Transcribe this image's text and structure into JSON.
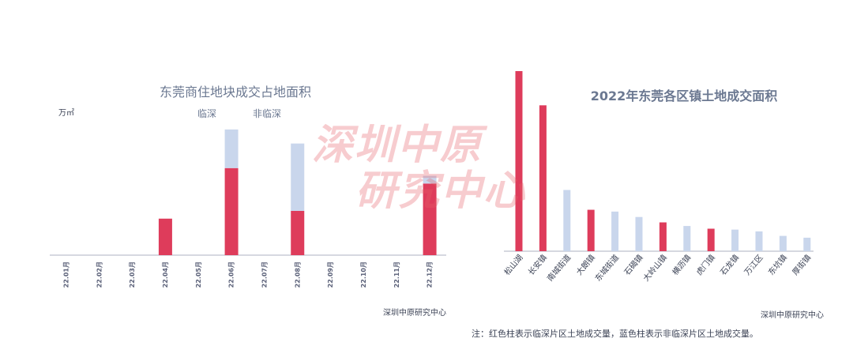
{
  "chart_data": [
    {
      "type": "bar",
      "stacked": true,
      "title": "东莞商住地块成交占地面积",
      "unit_label": "万㎡",
      "categories": [
        "22.01月",
        "22.02月",
        "22.03月",
        "22.04月",
        "22.05月",
        "22.06月",
        "22.07月",
        "22.08月",
        "22.09月",
        "22.10月",
        "22.11月",
        "22.12月"
      ],
      "series": [
        {
          "name": "临深",
          "color": "#de3c5b",
          "values": [
            0,
            0,
            0,
            5.2,
            0,
            12.4,
            0,
            6.3,
            0,
            0,
            0,
            10.2
          ]
        },
        {
          "name": "非临深",
          "color": "#c9d6ec",
          "values": [
            0,
            0,
            0,
            0,
            0,
            5.5,
            0,
            9.6,
            0,
            0,
            0,
            1.1
          ]
        }
      ],
      "ylim": [
        0,
        18
      ],
      "grid": false,
      "legend": "top",
      "source": "深圳中原研究中心"
    },
    {
      "type": "bar",
      "title": "2022年东莞各区镇土地成交面积",
      "categories": [
        "松山湖",
        "长安镇",
        "南城街道",
        "大朗镇",
        "东城街道",
        "石碣镇",
        "大岭山镇",
        "横沥镇",
        "虎门镇",
        "石龙镇",
        "万江区",
        "东坑镇",
        "厚街镇"
      ],
      "values": [
        100,
        81,
        34,
        23,
        22,
        19,
        16,
        14,
        12.5,
        12,
        11,
        8.5,
        7.5
      ],
      "colors": [
        "#de3c5b",
        "#de3c5b",
        "#c9d6ec",
        "#de3c5b",
        "#c9d6ec",
        "#c9d6ec",
        "#de3c5b",
        "#c9d6ec",
        "#de3c5b",
        "#c9d6ec",
        "#c9d6ec",
        "#c9d6ec",
        "#c9d6ec"
      ],
      "ylim": [
        0,
        100
      ],
      "grid": false,
      "source": "深圳中原研究中心",
      "note": "注：红色柱表示临深片区土地成交量，蓝色柱表示非临深片区土地成交量。"
    }
  ],
  "watermark": {
    "line1": "深圳中原",
    "line2": "研究中心"
  }
}
